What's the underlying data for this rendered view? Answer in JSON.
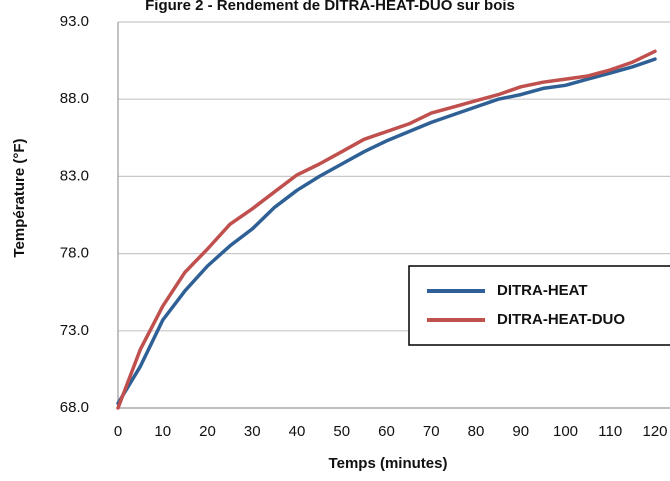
{
  "chart_data": {
    "type": "line",
    "title": "Figure 2 - Rendement de DITRA-HEAT-DUO sur bois",
    "xlabel": "Temps (minutes)",
    "ylabel": "Température (°F)",
    "xlim": [
      0,
      120
    ],
    "ylim": [
      68,
      93
    ],
    "x_ticks": [
      "0",
      "10",
      "20",
      "30",
      "40",
      "50",
      "60",
      "70",
      "80",
      "90",
      "100",
      "110",
      "120"
    ],
    "y_ticks": [
      "68.0",
      "73.0",
      "78.0",
      "83.0",
      "88.0",
      "93.0"
    ],
    "grid": true,
    "legend_position": "right",
    "series": [
      {
        "name": "DITRA-HEAT",
        "color": "#2e6096",
        "x": [
          0,
          5,
          10,
          15,
          20,
          25,
          30,
          35,
          40,
          45,
          50,
          55,
          60,
          65,
          70,
          75,
          80,
          85,
          90,
          95,
          100,
          105,
          110,
          115,
          120
        ],
        "y": [
          68.3,
          70.7,
          73.7,
          75.6,
          77.2,
          78.5,
          79.6,
          81.0,
          82.1,
          83.0,
          83.8,
          84.6,
          85.3,
          85.9,
          86.5,
          87.0,
          87.5,
          88.0,
          88.3,
          88.7,
          88.9,
          89.3,
          89.7,
          90.1,
          90.6
        ]
      },
      {
        "name": "DITRA-HEAT-DUO",
        "color": "#c0504d",
        "x": [
          0,
          5,
          10,
          15,
          20,
          25,
          30,
          35,
          40,
          45,
          50,
          55,
          60,
          65,
          70,
          75,
          80,
          85,
          90,
          95,
          100,
          105,
          110,
          115,
          120
        ],
        "y": [
          68.0,
          71.8,
          74.6,
          76.8,
          78.3,
          79.9,
          80.9,
          82.0,
          83.1,
          83.8,
          84.6,
          85.4,
          85.9,
          86.4,
          87.1,
          87.5,
          87.9,
          88.3,
          88.8,
          89.1,
          89.3,
          89.5,
          89.9,
          90.4,
          91.1
        ]
      }
    ]
  }
}
